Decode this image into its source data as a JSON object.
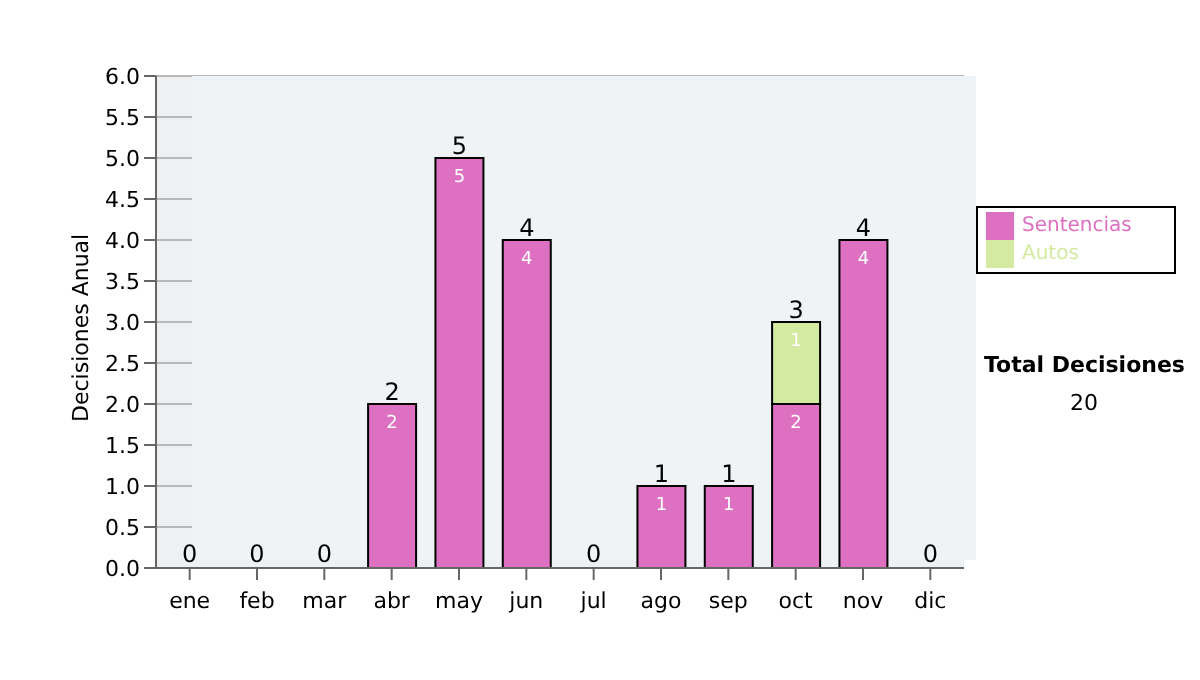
{
  "chart_data": {
    "type": "bar",
    "stacked": true,
    "ylabel": "Decisiones Anual",
    "categories": [
      "ene",
      "feb",
      "mar",
      "abr",
      "may",
      "jun",
      "jul",
      "ago",
      "sep",
      "oct",
      "nov",
      "dic"
    ],
    "series": [
      {
        "name": "Sentencias",
        "color": "#dd70c0",
        "values": [
          0,
          0,
          0,
          2,
          5,
          4,
          0,
          1,
          1,
          2,
          4,
          0
        ],
        "value_labels": [
          null,
          null,
          null,
          "2",
          "5",
          "4",
          null,
          "1",
          "1",
          "2",
          "4",
          null
        ]
      },
      {
        "name": "Autos",
        "color": "#d4eaa0",
        "values": [
          0,
          0,
          0,
          0,
          0,
          0,
          0,
          0,
          0,
          1,
          0,
          0
        ],
        "value_labels": [
          null,
          null,
          null,
          null,
          null,
          null,
          null,
          null,
          null,
          "1",
          null,
          null
        ]
      }
    ],
    "totals": [
      "0",
      "0",
      "0",
      "2",
      "5",
      "4",
      "0",
      "1",
      "1",
      "3",
      "4",
      "0"
    ],
    "ylim": [
      0,
      6
    ],
    "yticks": [
      {
        "value": 0,
        "label": "0.0"
      },
      {
        "value": 0.5,
        "label": "0.5"
      },
      {
        "value": 1,
        "label": "1.0"
      },
      {
        "value": 1.5,
        "label": "1.5"
      },
      {
        "value": 2,
        "label": "2.0"
      },
      {
        "value": 2.5,
        "label": "2.5"
      },
      {
        "value": 3,
        "label": "3.0"
      },
      {
        "value": 3.5,
        "label": "3.5"
      },
      {
        "value": 4,
        "label": "4.0"
      },
      {
        "value": 4.5,
        "label": "4.5"
      },
      {
        "value": 5,
        "label": "5.0"
      },
      {
        "value": 5.5,
        "label": "5.5"
      },
      {
        "value": 6,
        "label": "6.0"
      }
    ],
    "grid": "y",
    "legend": "right",
    "annotations": [
      "Total Decisiones",
      "20"
    ]
  }
}
